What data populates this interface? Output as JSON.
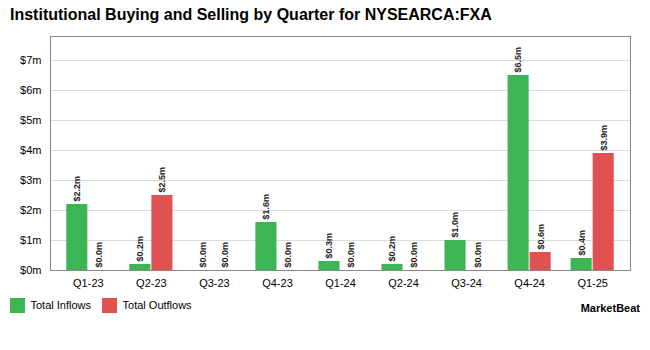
{
  "chart_data": {
    "type": "bar",
    "title": "Institutional Buying and Selling by Quarter for NYSEARCA:FXA",
    "categories": [
      "Q1-23",
      "Q2-23",
      "Q3-23",
      "Q4-23",
      "Q1-24",
      "Q2-24",
      "Q3-24",
      "Q4-24",
      "Q1-25"
    ],
    "series": [
      {
        "name": "Total Inflows",
        "color": "#3cb554",
        "values": [
          2.2,
          0.2,
          0.0,
          1.6,
          0.3,
          0.2,
          1.0,
          6.5,
          0.4
        ],
        "value_labels": [
          "$2.2m",
          "$0.2m",
          "$0.0m",
          "$1.6m",
          "$0.3m",
          "$0.2m",
          "$1.0m",
          "$6.5m",
          "$0.4m"
        ]
      },
      {
        "name": "Total Outflows",
        "color": "#e05252",
        "values": [
          0.0,
          2.5,
          0.0,
          0.0,
          0.0,
          0.0,
          0.0,
          0.6,
          3.9
        ],
        "value_labels": [
          "$0.0m",
          "$2.5m",
          "$0.0m",
          "$0.0m",
          "$0.0m",
          "$0.0m",
          "$0.0m",
          "$0.6m",
          "$3.9m"
        ]
      }
    ],
    "ylim": [
      0,
      7.8
    ],
    "yticks": [
      {
        "value": 0,
        "label": "$0m"
      },
      {
        "value": 1,
        "label": "$1m"
      },
      {
        "value": 2,
        "label": "$2m"
      },
      {
        "value": 3,
        "label": "$3m"
      },
      {
        "value": 4,
        "label": "$4m"
      },
      {
        "value": 5,
        "label": "$5m"
      },
      {
        "value": 6,
        "label": "$6m"
      },
      {
        "value": 7,
        "label": "$7m"
      }
    ],
    "grid": true,
    "data_labels": true,
    "legend": "bottom",
    "annotations": [
      "MarketBeat"
    ]
  }
}
